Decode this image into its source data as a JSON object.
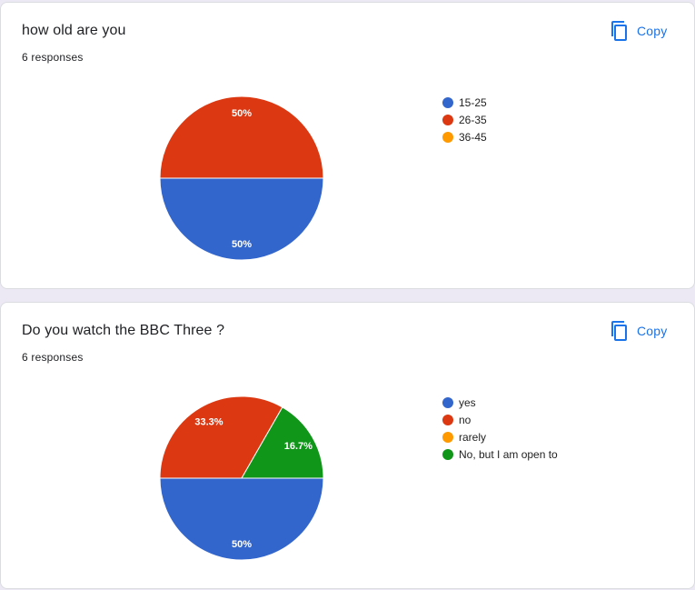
{
  "colors": {
    "blue": "#3366cc",
    "red": "#dc3912",
    "orange": "#ff9900",
    "green": "#109618",
    "accent": "#1a73e8"
  },
  "copy_label": "Copy",
  "copy_icon": "copy-icon",
  "cards": [
    {
      "title": "how old are you",
      "responses": "6 responses"
    },
    {
      "title": "Do you watch the BBC Three ?",
      "responses": "6 responses"
    }
  ],
  "chart_data": [
    {
      "type": "pie",
      "title": "how old are you",
      "categories": [
        "15-25",
        "26-35",
        "36-45"
      ],
      "values": [
        50,
        50,
        0
      ],
      "labels": [
        "50%",
        "50%",
        ""
      ],
      "colors": [
        "#3366cc",
        "#dc3912",
        "#ff9900"
      ],
      "legend_position": "right"
    },
    {
      "type": "pie",
      "title": "Do you watch the BBC Three ?",
      "categories": [
        "yes",
        "no",
        "rarely",
        "No, but I am open to"
      ],
      "values": [
        50,
        33.3,
        0,
        16.7
      ],
      "labels": [
        "50%",
        "33.3%",
        "",
        "16.7%"
      ],
      "colors": [
        "#3366cc",
        "#dc3912",
        "#ff9900",
        "#109618"
      ],
      "legend_position": "right"
    }
  ]
}
